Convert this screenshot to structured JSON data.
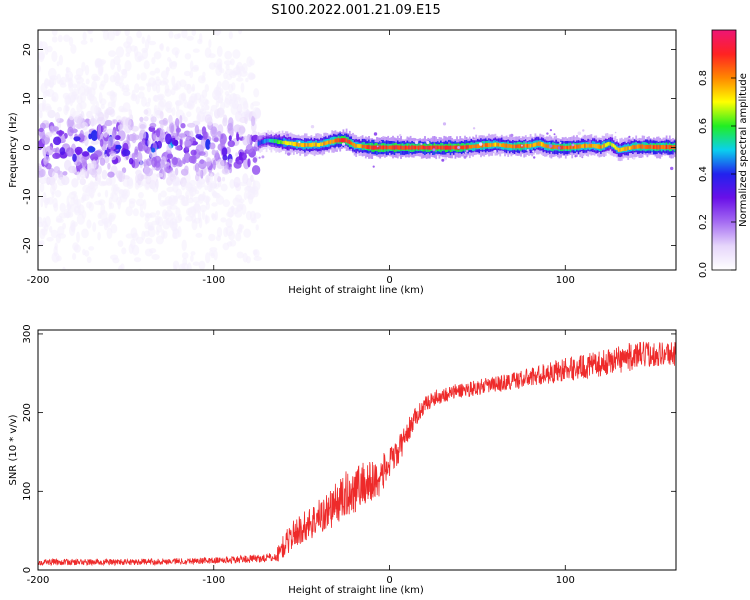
{
  "figure_title": "S100.2022.001.21.09.E15",
  "colors": {
    "snr_line": "#ee2a2a",
    "spectrum_low": "#e0cef8",
    "spectrum_mid": "#6a10e8",
    "spectrum_high": "#ee1560"
  },
  "chart_data": [
    {
      "type": "heatmap",
      "title": "",
      "xlabel": "Height of straight line (km)",
      "ylabel": "Frequency (Hz)",
      "xlim": [
        -200,
        163
      ],
      "ylim": [
        -25,
        24
      ],
      "xticks": [
        -200,
        -100,
        0,
        100
      ],
      "yticks": [
        -20,
        -10,
        0,
        10,
        20
      ],
      "colorbar": {
        "label": "Normalized spectral amplitude",
        "range": [
          0.0,
          1.0
        ],
        "ticks": [
          0.0,
          0.2,
          0.4,
          0.6,
          0.8
        ],
        "tick_labels": [
          "0.0",
          "0.2",
          "0.4",
          "0.6",
          "0.8"
        ],
        "colormap": [
          "#ffffff",
          "#e6d6fb",
          "#a56cf2",
          "#6a10e8",
          "#2222ee",
          "#0ad0ee",
          "#22ee22",
          "#ffff00",
          "#ff8800",
          "#ff2222",
          "#ee1575"
        ]
      },
      "regions": [
        {
          "x_range": [
            -200,
            -75
          ],
          "description_values": {
            "freq_spread_hz": 24,
            "dominant_freq_hz": 0,
            "max_amplitude": 0.35
          }
        },
        {
          "x_range": [
            -75,
            163
          ],
          "description_values": {
            "freq_spread_hz": 1.5,
            "dominant_freq_hz": 0,
            "max_amplitude": 0.95
          }
        }
      ],
      "ridge": {
        "x": [
          -75,
          -70,
          -60,
          -50,
          -40,
          -30,
          -25,
          -20,
          -10,
          0,
          10,
          20,
          40,
          55,
          60,
          70,
          80,
          85,
          90,
          100,
          110,
          115,
          120,
          125,
          130,
          140,
          150,
          163
        ],
        "y": [
          0.8,
          1.5,
          1.0,
          0.5,
          0.6,
          1.5,
          1.5,
          0.4,
          0.0,
          0.0,
          0.0,
          0.0,
          0.0,
          0.5,
          0.6,
          0.2,
          0.4,
          0.8,
          0.2,
          0.0,
          0.3,
          0.4,
          0.1,
          0.9,
          -0.5,
          0.2,
          0.1,
          0.1
        ],
        "amp": [
          0.45,
          0.5,
          0.75,
          0.85,
          0.8,
          0.9,
          0.95,
          0.8,
          0.95,
          0.95,
          0.95,
          0.95,
          0.95,
          0.85,
          0.8,
          0.9,
          0.85,
          0.8,
          0.85,
          0.9,
          0.85,
          0.8,
          0.85,
          0.7,
          0.75,
          0.85,
          0.9,
          0.9
        ]
      }
    },
    {
      "type": "line",
      "title": "",
      "xlabel": "Height of straight line (km)",
      "ylabel": "SNR (10 * v/v)",
      "xlim": [
        -200,
        163
      ],
      "ylim": [
        0,
        305
      ],
      "xticks": [
        -200,
        -100,
        0,
        100
      ],
      "yticks": [
        0,
        100,
        200,
        300
      ],
      "series": [
        {
          "x": [
            -200,
            -150,
            -100,
            -80,
            -65,
            -62,
            -55,
            -45,
            -35,
            -25,
            -15,
            -10,
            -5,
            0,
            5,
            10,
            15,
            20,
            25,
            30,
            40,
            50,
            60,
            70,
            80,
            90,
            100,
            110,
            120,
            130,
            140,
            150,
            163
          ],
          "values": [
            10,
            10,
            12,
            14,
            16,
            25,
            45,
            60,
            75,
            95,
            110,
            110,
            120,
            135,
            150,
            175,
            195,
            210,
            218,
            222,
            228,
            232,
            236,
            240,
            245,
            250,
            255,
            258,
            262,
            268,
            272,
            275,
            275
          ],
          "noise": [
            4,
            4,
            4,
            5,
            6,
            15,
            18,
            22,
            25,
            30,
            30,
            30,
            25,
            20,
            18,
            15,
            12,
            10,
            10,
            10,
            10,
            10,
            10,
            12,
            12,
            14,
            15,
            16,
            16,
            18,
            18,
            16,
            16
          ]
        }
      ]
    }
  ]
}
